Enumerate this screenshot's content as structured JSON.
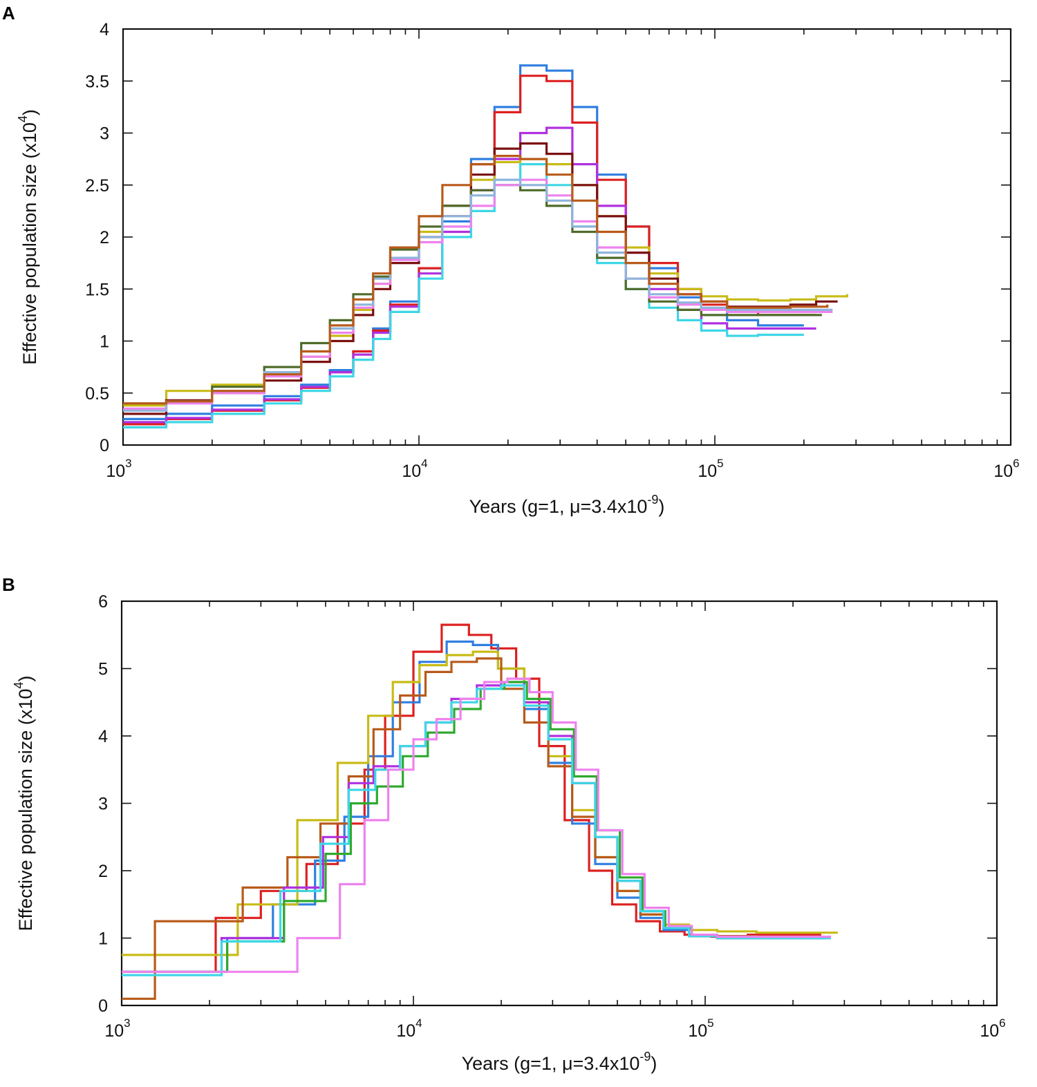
{
  "chart_data": [
    {
      "panel": "A",
      "type": "line",
      "step": true,
      "xscale": "log",
      "xlim": [
        1000,
        1000000
      ],
      "ylim": [
        0,
        4
      ],
      "xticks": [
        {
          "base": "10",
          "exp": "3"
        },
        {
          "base": "10",
          "exp": "4"
        },
        {
          "base": "10",
          "exp": "5"
        },
        {
          "base": "10",
          "exp": "6"
        }
      ],
      "yticks": [
        "0",
        "0.5",
        "1",
        "1.5",
        "2",
        "2.5",
        "3",
        "3.5",
        "4"
      ],
      "xlabel": {
        "main": "Years (g=1, μ=3.4x10",
        "sup": "-9",
        "close": ")"
      },
      "ylabel": {
        "main": "Effective population size (x10",
        "sup": "4",
        "close": ")"
      },
      "series": [
        {
          "name": "blue",
          "color": "#2f7fe0",
          "x": [
            1000,
            1400,
            2000,
            3000,
            4000,
            5000,
            6000,
            7000,
            8000,
            10000,
            12000,
            15000,
            18000,
            22000,
            27000,
            33000,
            40000,
            50000,
            60000,
            75000,
            90000,
            110000,
            140000,
            200000
          ],
          "y": [
            0.25,
            0.3,
            0.38,
            0.47,
            0.58,
            0.72,
            0.9,
            1.12,
            1.38,
            1.7,
            2.15,
            2.75,
            3.25,
            3.65,
            3.6,
            3.25,
            2.6,
            2.1,
            1.7,
            1.42,
            1.3,
            1.2,
            1.15,
            1.15
          ]
        },
        {
          "name": "red",
          "color": "#dd2020",
          "x": [
            1000,
            1400,
            2000,
            3000,
            4000,
            5000,
            6000,
            7000,
            8000,
            10000,
            12000,
            15000,
            18000,
            22000,
            27000,
            33000,
            40000,
            50000,
            60000,
            75000,
            90000,
            110000,
            140000,
            220000
          ],
          "y": [
            0.2,
            0.25,
            0.33,
            0.43,
            0.55,
            0.7,
            0.9,
            1.1,
            1.35,
            1.7,
            2.2,
            2.7,
            3.2,
            3.55,
            3.5,
            3.1,
            2.55,
            2.1,
            1.75,
            1.5,
            1.35,
            1.28,
            1.25,
            1.25
          ]
        },
        {
          "name": "purple",
          "color": "#b030e0",
          "x": [
            1000,
            1400,
            2000,
            3000,
            4000,
            5000,
            6000,
            7000,
            8000,
            10000,
            12000,
            15000,
            18000,
            22000,
            27000,
            33000,
            40000,
            50000,
            60000,
            75000,
            90000,
            110000,
            140000,
            220000
          ],
          "y": [
            0.22,
            0.26,
            0.34,
            0.44,
            0.56,
            0.7,
            0.87,
            1.08,
            1.33,
            1.65,
            2.05,
            2.45,
            2.75,
            3.0,
            3.05,
            2.7,
            2.3,
            1.85,
            1.5,
            1.3,
            1.17,
            1.12,
            1.12,
            1.12
          ]
        },
        {
          "name": "cyan",
          "color": "#3dd6e6",
          "x": [
            1000,
            1400,
            2000,
            3000,
            4000,
            5000,
            6000,
            7000,
            8000,
            10000,
            12000,
            15000,
            18000,
            22000,
            27000,
            33000,
            40000,
            50000,
            60000,
            75000,
            90000,
            110000,
            140000,
            200000
          ],
          "y": [
            0.17,
            0.22,
            0.3,
            0.4,
            0.52,
            0.66,
            0.82,
            1.02,
            1.28,
            1.6,
            2.0,
            2.25,
            2.55,
            2.7,
            2.5,
            2.1,
            1.75,
            1.5,
            1.32,
            1.2,
            1.1,
            1.05,
            1.06,
            1.06
          ]
        },
        {
          "name": "yellow-olive",
          "color": "#c8bb16",
          "x": [
            1000,
            1400,
            2000,
            3000,
            4000,
            5000,
            6000,
            7000,
            8000,
            10000,
            12000,
            15000,
            18000,
            22000,
            27000,
            33000,
            40000,
            50000,
            60000,
            75000,
            90000,
            110000,
            140000,
            180000,
            220000,
            280000
          ],
          "y": [
            0.38,
            0.52,
            0.58,
            0.68,
            0.85,
            1.05,
            1.3,
            1.55,
            1.8,
            2.05,
            2.3,
            2.55,
            2.72,
            2.75,
            2.7,
            2.5,
            2.2,
            1.9,
            1.65,
            1.5,
            1.43,
            1.4,
            1.39,
            1.4,
            1.43,
            1.45
          ]
        },
        {
          "name": "maroon",
          "color": "#7a1010",
          "x": [
            1000,
            1400,
            2000,
            3000,
            4000,
            5000,
            6000,
            7000,
            8000,
            10000,
            12000,
            15000,
            18000,
            22000,
            27000,
            33000,
            40000,
            50000,
            60000,
            75000,
            90000,
            110000,
            140000,
            180000,
            220000,
            260000
          ],
          "y": [
            0.3,
            0.43,
            0.5,
            0.62,
            0.8,
            1.0,
            1.25,
            1.5,
            1.75,
            2.0,
            2.3,
            2.6,
            2.85,
            2.9,
            2.8,
            2.5,
            2.2,
            1.85,
            1.6,
            1.45,
            1.38,
            1.33,
            1.33,
            1.35,
            1.38,
            1.38
          ]
        },
        {
          "name": "dark-olive",
          "color": "#4f6b2a",
          "x": [
            1000,
            1400,
            2000,
            3000,
            4000,
            5000,
            6000,
            7000,
            8000,
            10000,
            12000,
            15000,
            18000,
            22000,
            27000,
            33000,
            40000,
            50000,
            60000,
            75000,
            90000,
            110000,
            140000,
            180000,
            230000
          ],
          "y": [
            0.4,
            0.42,
            0.56,
            0.75,
            0.98,
            1.2,
            1.45,
            1.62,
            1.88,
            2.1,
            2.3,
            2.45,
            2.5,
            2.45,
            2.3,
            2.05,
            1.8,
            1.5,
            1.38,
            1.3,
            1.25,
            1.25,
            1.25,
            1.25,
            1.25
          ]
        },
        {
          "name": "pink",
          "color": "#ee82ee",
          "x": [
            1000,
            1400,
            2000,
            3000,
            4000,
            5000,
            6000,
            7000,
            8000,
            10000,
            12000,
            15000,
            18000,
            22000,
            27000,
            33000,
            40000,
            50000,
            60000,
            75000,
            90000,
            110000,
            140000,
            180000,
            250000
          ],
          "y": [
            0.35,
            0.4,
            0.5,
            0.66,
            0.85,
            1.08,
            1.32,
            1.55,
            1.78,
            1.95,
            2.1,
            2.3,
            2.5,
            2.55,
            2.4,
            2.15,
            1.9,
            1.6,
            1.42,
            1.35,
            1.3,
            1.28,
            1.28,
            1.28,
            1.28
          ]
        },
        {
          "name": "light-steel",
          "color": "#8fb4dc",
          "x": [
            1000,
            1400,
            2000,
            3000,
            4000,
            5000,
            6000,
            7000,
            8000,
            10000,
            12000,
            15000,
            18000,
            22000,
            27000,
            33000,
            40000,
            50000,
            60000,
            75000,
            90000,
            110000,
            140000,
            180000,
            250000
          ],
          "y": [
            0.33,
            0.42,
            0.52,
            0.7,
            0.9,
            1.12,
            1.35,
            1.6,
            1.8,
            2.0,
            2.2,
            2.4,
            2.55,
            2.5,
            2.35,
            2.1,
            1.85,
            1.6,
            1.45,
            1.37,
            1.32,
            1.3,
            1.3,
            1.3,
            1.3
          ]
        },
        {
          "name": "orange-brown",
          "color": "#b85a1a",
          "x": [
            1000,
            1400,
            2000,
            3000,
            4000,
            5000,
            6000,
            7000,
            8000,
            10000,
            12000,
            15000,
            18000,
            22000,
            27000,
            33000,
            40000,
            50000,
            60000,
            75000,
            90000,
            110000,
            140000,
            180000,
            240000
          ],
          "y": [
            0.4,
            0.42,
            0.52,
            0.68,
            0.9,
            1.15,
            1.4,
            1.65,
            1.9,
            2.2,
            2.5,
            2.7,
            2.78,
            2.75,
            2.6,
            2.35,
            2.05,
            1.75,
            1.55,
            1.45,
            1.38,
            1.32,
            1.32,
            1.33,
            1.35
          ]
        }
      ]
    },
    {
      "panel": "B",
      "type": "line",
      "step": true,
      "xscale": "log",
      "xlim": [
        1000,
        1000000
      ],
      "ylim": [
        0,
        6
      ],
      "xticks": [
        {
          "base": "10",
          "exp": "3"
        },
        {
          "base": "10",
          "exp": "4"
        },
        {
          "base": "10",
          "exp": "5"
        },
        {
          "base": "10",
          "exp": "6"
        }
      ],
      "yticks": [
        "0",
        "1",
        "2",
        "3",
        "4",
        "5",
        "6"
      ],
      "xlabel": {
        "main": "Years (g=1, μ=3.4x10",
        "sup": "-9",
        "close": ")"
      },
      "ylabel": {
        "main": "Effective population size (x10",
        "sup": "4",
        "close": ")"
      },
      "series": [
        {
          "name": "red",
          "color": "#dd2020",
          "x": [
            1000,
            2100,
            3000,
            4300,
            5500,
            6800,
            8000,
            10000,
            12500,
            15500,
            18500,
            22500,
            27000,
            33000,
            40000,
            48000,
            58000,
            70000,
            85000,
            105000,
            140000,
            250000
          ],
          "y": [
            0.5,
            1.3,
            1.7,
            2.1,
            2.7,
            3.5,
            4.3,
            5.25,
            5.65,
            5.5,
            5.3,
            4.85,
            3.85,
            2.75,
            2.0,
            1.5,
            1.25,
            1.1,
            1.05,
            1.02,
            1.05,
            1.05
          ]
        },
        {
          "name": "blue",
          "color": "#2f7fe0",
          "x": [
            1000,
            2300,
            3300,
            4600,
            5800,
            7000,
            8500,
            10500,
            13000,
            16000,
            19500,
            24000,
            29000,
            35000,
            42000,
            50000,
            60000,
            72000,
            88000,
            110000,
            150000,
            260000
          ],
          "y": [
            0.5,
            1.0,
            1.5,
            2.15,
            2.8,
            3.7,
            4.5,
            5.1,
            5.4,
            5.35,
            5.0,
            4.4,
            3.6,
            2.7,
            2.1,
            1.6,
            1.3,
            1.12,
            1.03,
            1.0,
            1.0,
            1.0
          ]
        },
        {
          "name": "yellow-olive",
          "color": "#c8bb16",
          "x": [
            1000,
            2500,
            4000,
            5500,
            7000,
            8500,
            10500,
            13000,
            16000,
            19500,
            24000,
            29000,
            35000,
            42000,
            50000,
            60000,
            72000,
            88000,
            110000,
            150000,
            200000,
            285000
          ],
          "y": [
            0.75,
            1.5,
            2.75,
            3.6,
            4.3,
            4.8,
            5.05,
            5.2,
            5.25,
            5.0,
            4.5,
            3.7,
            2.9,
            2.2,
            1.7,
            1.35,
            1.2,
            1.12,
            1.1,
            1.08,
            1.08,
            1.08
          ]
        },
        {
          "name": "orange-brown",
          "color": "#b85a1a",
          "x": [
            1000,
            1300,
            2600,
            3700,
            4800,
            6000,
            7300,
            9000,
            11000,
            13500,
            16500,
            20000,
            24000,
            29000,
            35000,
            42000,
            50000,
            60000,
            72000,
            88000,
            110000,
            150000,
            250000
          ],
          "y": [
            0.1,
            1.25,
            1.75,
            2.2,
            2.7,
            3.4,
            4.1,
            4.6,
            4.95,
            5.1,
            5.15,
            4.7,
            4.2,
            3.55,
            2.8,
            2.2,
            1.7,
            1.35,
            1.15,
            1.05,
            1.03,
            1.02,
            1.02
          ]
        },
        {
          "name": "purple",
          "color": "#b030e0",
          "x": [
            1000,
            2200,
            3600,
            4900,
            6000,
            7300,
            9000,
            11000,
            13500,
            16500,
            20000,
            24000,
            29000,
            35000,
            42000,
            50000,
            60000,
            72000,
            88000,
            110000,
            150000,
            270000
          ],
          "y": [
            0.5,
            1.0,
            1.75,
            2.5,
            3.3,
            3.55,
            3.85,
            4.2,
            4.55,
            4.75,
            4.8,
            4.5,
            4.0,
            3.3,
            2.5,
            1.85,
            1.4,
            1.15,
            1.03,
            1.0,
            1.0,
            1.0
          ]
        },
        {
          "name": "green",
          "color": "#2eaa2e",
          "x": [
            1000,
            2300,
            3600,
            5000,
            6100,
            7500,
            9200,
            11200,
            13800,
            17000,
            20500,
            24500,
            29500,
            35500,
            42500,
            51000,
            61000,
            73000,
            90000,
            110000,
            150000,
            260000
          ],
          "y": [
            0.5,
            0.95,
            1.55,
            2.25,
            3.0,
            3.25,
            3.7,
            4.05,
            4.4,
            4.7,
            4.8,
            4.55,
            4.1,
            3.4,
            2.6,
            1.9,
            1.4,
            1.15,
            1.03,
            1.0,
            1.0,
            1.0
          ]
        },
        {
          "name": "cyan",
          "color": "#3dd6e6",
          "x": [
            1000,
            2200,
            3500,
            4800,
            6000,
            7400,
            9000,
            11000,
            13500,
            16500,
            20000,
            24000,
            29000,
            35000,
            42000,
            50000,
            60000,
            72000,
            88000,
            110000,
            150000,
            270000
          ],
          "y": [
            0.45,
            0.95,
            1.7,
            2.4,
            3.2,
            3.5,
            3.85,
            4.2,
            4.5,
            4.7,
            4.75,
            4.45,
            3.95,
            3.3,
            2.5,
            1.85,
            1.4,
            1.15,
            1.03,
            1.0,
            1.0,
            1.0
          ]
        },
        {
          "name": "pink",
          "color": "#ee82ee",
          "x": [
            1000,
            2200,
            4000,
            5600,
            6800,
            8200,
            10000,
            12000,
            14500,
            17500,
            21000,
            25000,
            30000,
            36000,
            43000,
            52000,
            62000,
            75000,
            90000,
            110000,
            150000,
            270000
          ],
          "y": [
            0.5,
            0.5,
            1.0,
            1.8,
            2.75,
            3.5,
            3.95,
            4.25,
            4.55,
            4.8,
            4.85,
            4.65,
            4.2,
            3.5,
            2.6,
            1.95,
            1.45,
            1.18,
            1.05,
            1.02,
            1.02,
            1.02
          ]
        }
      ]
    }
  ]
}
